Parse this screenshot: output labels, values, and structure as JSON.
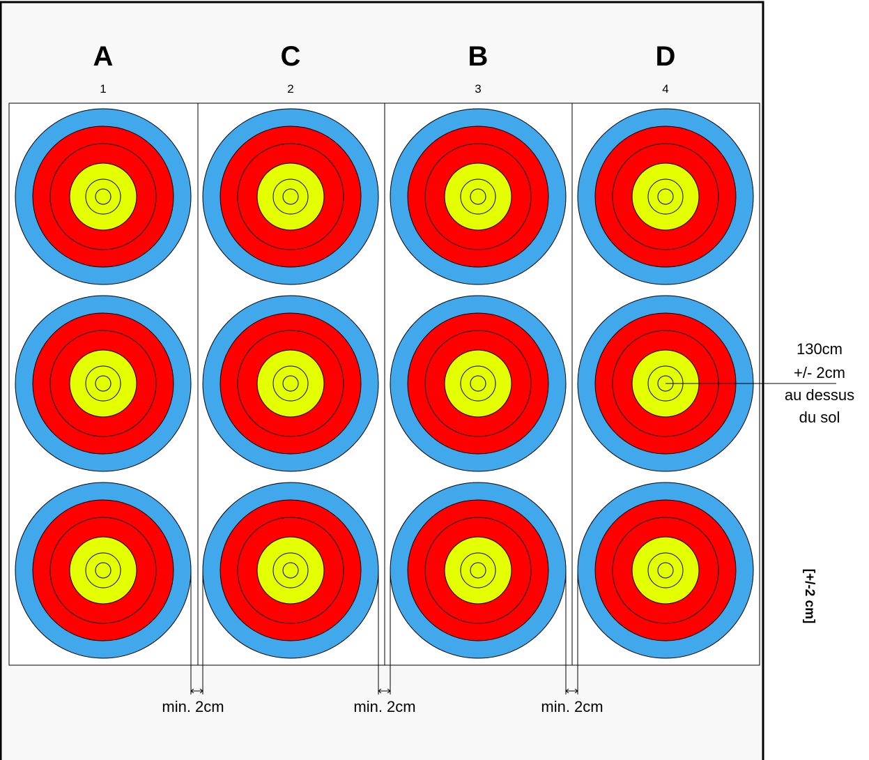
{
  "colors": {
    "panel_bg": "#f8f8f8",
    "boss_bg": "#ffffff",
    "frame": "#000000",
    "blue": "#41a8ec",
    "red": "#ff0000",
    "yellow": "#e4ff00",
    "line": "#000000"
  },
  "columns": [
    {
      "letter": "A",
      "number": "1"
    },
    {
      "letter": "C",
      "number": "2"
    },
    {
      "letter": "B",
      "number": "3"
    },
    {
      "letter": "D",
      "number": "4"
    }
  ],
  "rows": 3,
  "gap_labels": [
    "min. 2cm",
    "min. 2cm",
    "min. 2cm"
  ],
  "height_label": [
    "130cm",
    "+/- 2cm",
    "au dessus",
    "du sol"
  ],
  "tolerance_label": "[+/-2 cm]"
}
